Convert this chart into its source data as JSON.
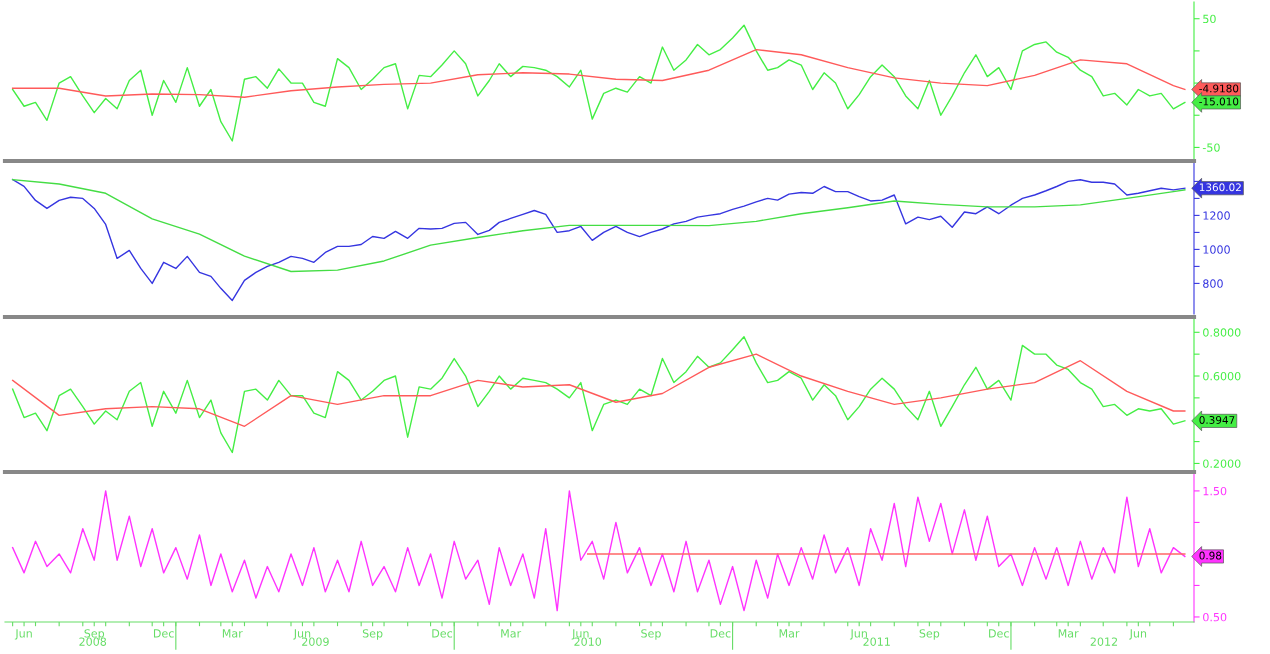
{
  "chart_data": [
    {
      "type": "line",
      "tick_labels": "y",
      "xlim": [
        "2008-05-22",
        "2012-08-28"
      ],
      "ylim": [
        -59,
        63
      ],
      "yticks": [
        -50,
        {
          "value": -25,
          "label": null
        },
        {
          "value": 0,
          "label": null
        },
        {
          "value": 25,
          "label": null
        },
        50
      ],
      "x": [
        "2008-06-01",
        "2008-06-16",
        "2008-07-01",
        "2008-07-16",
        "2008-08-01",
        "2008-08-16",
        "2008-09-01",
        "2008-09-16",
        "2008-10-01",
        "2008-10-16",
        "2008-11-01",
        "2008-11-16",
        "2008-12-01",
        "2008-12-16",
        "2009-01-01",
        "2009-01-16",
        "2009-02-01",
        "2009-02-16",
        "2009-03-01",
        "2009-03-16",
        "2009-04-01",
        "2009-04-16",
        "2009-05-01",
        "2009-05-16",
        "2009-06-01",
        "2009-06-16",
        "2009-07-01",
        "2009-07-16",
        "2009-08-01",
        "2009-08-16",
        "2009-09-01",
        "2009-09-16",
        "2009-10-01",
        "2009-10-16",
        "2009-11-01",
        "2009-11-16",
        "2009-12-01",
        "2009-12-16",
        "2010-01-01",
        "2010-01-16",
        "2010-02-01",
        "2010-02-16",
        "2010-03-01",
        "2010-03-16",
        "2010-04-01",
        "2010-04-16",
        "2010-05-01",
        "2010-05-16",
        "2010-06-01",
        "2010-06-16",
        "2010-07-01",
        "2010-07-16",
        "2010-08-01",
        "2010-08-16",
        "2010-09-01",
        "2010-09-16",
        "2010-10-01",
        "2010-10-16",
        "2010-11-01",
        "2010-11-16",
        "2010-12-01",
        "2010-12-16",
        "2011-01-01",
        "2011-01-16",
        "2011-02-01",
        "2011-02-16",
        "2011-03-01",
        "2011-03-16",
        "2011-04-01",
        "2011-04-16",
        "2011-05-01",
        "2011-05-16",
        "2011-06-01",
        "2011-06-16",
        "2011-07-01",
        "2011-07-16",
        "2011-08-01",
        "2011-08-16",
        "2011-09-01",
        "2011-09-16",
        "2011-10-01",
        "2011-10-16",
        "2011-11-01",
        "2011-11-16",
        "2011-12-01",
        "2011-12-16",
        "2012-01-01",
        "2012-01-16",
        "2012-02-01",
        "2012-02-16",
        "2012-03-01",
        "2012-03-16",
        "2012-04-01",
        "2012-04-16",
        "2012-05-01",
        "2012-05-16",
        "2012-06-01",
        "2012-06-16",
        "2012-07-01",
        "2012-07-16",
        "2012-08-01",
        "2012-08-16"
      ],
      "series": [
        {
          "color": "#44ee44",
          "values": [
            -5,
            -18,
            -15,
            -29,
            0,
            5,
            -10,
            -23,
            -12,
            -20,
            2,
            10,
            -25,
            2,
            -15,
            12,
            -18,
            -5,
            -30,
            -45,
            3,
            5,
            -4,
            11,
            0,
            0,
            -15,
            -18,
            19,
            12,
            -5,
            3,
            12,
            15,
            -20,
            6,
            5,
            14,
            25,
            15,
            -10,
            2,
            15,
            5,
            13,
            12,
            10,
            5,
            -3,
            10,
            -28,
            -8,
            -4,
            -7,
            5,
            0,
            28,
            10,
            18,
            30,
            22,
            26,
            35,
            45,
            25,
            10,
            12,
            18,
            14,
            -5,
            8,
            0,
            -20,
            -9,
            5,
            14,
            5,
            -10,
            -20,
            2,
            -25,
            -10,
            8,
            22,
            5,
            12,
            -5,
            25,
            30,
            32,
            24,
            20,
            10,
            5,
            -10,
            -8,
            -17,
            -5,
            -10,
            -8,
            -20,
            -15.01
          ]
        },
        {
          "color": "#ff5a5a",
          "x": [
            "2008-06-01",
            "2008-08-01",
            "2008-10-01",
            "2008-12-01",
            "2009-02-01",
            "2009-04-01",
            "2009-06-01",
            "2009-08-01",
            "2009-10-01",
            "2009-12-01",
            "2010-02-01",
            "2010-04-01",
            "2010-06-01",
            "2010-08-01",
            "2010-10-01",
            "2010-12-01",
            "2011-02-01",
            "2011-04-01",
            "2011-06-01",
            "2011-08-01",
            "2011-10-01",
            "2011-12-01",
            "2012-02-01",
            "2012-04-01",
            "2012-06-01",
            "2012-08-01",
            "2012-08-16"
          ],
          "values": [
            -4,
            -4,
            -10,
            -8.5,
            -9,
            -11,
            -6,
            -3,
            -1,
            0,
            6.5,
            8,
            7,
            3,
            2,
            10,
            26,
            22,
            12,
            4,
            0,
            -2,
            6,
            18,
            15,
            -2,
            -4.918
          ]
        }
      ],
      "annotations": [
        {
          "text": "-4.9180",
          "x": "2012-08-16",
          "y": -4.918
        },
        {
          "text": "-15.010",
          "x": "2012-08-16",
          "y": -15.01
        }
      ]
    },
    {
      "type": "line",
      "tick_labels": "y",
      "xlim": [
        "2008-05-22",
        "2012-08-28"
      ],
      "ylim": [
        620,
        1520
      ],
      "yticks": [
        800,
        {
          "value": 900,
          "label": null
        },
        1000,
        {
          "value": 1100,
          "label": null
        },
        1200,
        {
          "value": 1300,
          "label": null
        },
        {
          "value": 1400,
          "label": null
        }
      ],
      "x": [
        "2008-06-01",
        "2008-06-16",
        "2008-07-01",
        "2008-07-16",
        "2008-08-01",
        "2008-08-16",
        "2008-09-01",
        "2008-09-16",
        "2008-10-01",
        "2008-10-16",
        "2008-11-01",
        "2008-11-16",
        "2008-12-01",
        "2008-12-16",
        "2009-01-01",
        "2009-01-16",
        "2009-02-01",
        "2009-02-16",
        "2009-03-01",
        "2009-03-16",
        "2009-04-01",
        "2009-04-16",
        "2009-05-01",
        "2009-05-16",
        "2009-06-01",
        "2009-06-16",
        "2009-07-01",
        "2009-07-16",
        "2009-08-01",
        "2009-08-16",
        "2009-09-01",
        "2009-09-16",
        "2009-10-01",
        "2009-10-16",
        "2009-11-01",
        "2009-11-16",
        "2009-12-01",
        "2009-12-16",
        "2010-01-01",
        "2010-01-16",
        "2010-02-01",
        "2010-02-16",
        "2010-03-01",
        "2010-03-16",
        "2010-04-01",
        "2010-04-16",
        "2010-05-01",
        "2010-05-16",
        "2010-06-01",
        "2010-06-16",
        "2010-07-01",
        "2010-07-16",
        "2010-08-01",
        "2010-08-16",
        "2010-09-01",
        "2010-09-16",
        "2010-10-01",
        "2010-10-16",
        "2010-11-01",
        "2010-11-16",
        "2010-12-01",
        "2010-12-16",
        "2011-01-01",
        "2011-01-16",
        "2011-02-01",
        "2011-02-16",
        "2011-03-01",
        "2011-03-16",
        "2011-04-01",
        "2011-04-16",
        "2011-05-01",
        "2011-05-16",
        "2011-06-01",
        "2011-06-16",
        "2011-07-01",
        "2011-07-16",
        "2011-08-01",
        "2011-08-16",
        "2011-09-01",
        "2011-09-16",
        "2011-10-01",
        "2011-10-16",
        "2011-11-01",
        "2011-11-16",
        "2011-12-01",
        "2011-12-16",
        "2012-01-01",
        "2012-01-16",
        "2012-02-01",
        "2012-02-16",
        "2012-03-01",
        "2012-03-16",
        "2012-04-01",
        "2012-04-16",
        "2012-05-01",
        "2012-05-16",
        "2012-06-01",
        "2012-06-16",
        "2012-07-01",
        "2012-07-16",
        "2012-08-01",
        "2012-08-16"
      ],
      "series": [
        {
          "color": "#3535e0",
          "values": [
            1411,
            1371,
            1288,
            1241,
            1288,
            1307,
            1300,
            1241,
            1147,
            947,
            994,
            888,
            800,
            924,
            888,
            959,
            865,
            841,
            771,
            700,
            818,
            865,
            900,
            924,
            959,
            947,
            924,
            982,
            1018,
            1018,
            1029,
            1076,
            1065,
            1106,
            1065,
            1124,
            1120,
            1124,
            1153,
            1159,
            1088,
            1112,
            1159,
            1182,
            1206,
            1229,
            1206,
            1100,
            1110,
            1135,
            1053,
            1100,
            1135,
            1100,
            1075,
            1100,
            1120,
            1150,
            1165,
            1190,
            1200,
            1210,
            1235,
            1255,
            1280,
            1300,
            1290,
            1325,
            1335,
            1330,
            1370,
            1340,
            1340,
            1310,
            1285,
            1290,
            1320,
            1150,
            1190,
            1175,
            1195,
            1130,
            1220,
            1210,
            1250,
            1210,
            1260,
            1300,
            1320,
            1345,
            1370,
            1400,
            1410,
            1395,
            1395,
            1385,
            1320,
            1330,
            1345,
            1360,
            1350,
            1360.02
          ]
        },
        {
          "color": "#44dd44",
          "x": [
            "2008-06-01",
            "2008-08-01",
            "2008-10-01",
            "2008-12-01",
            "2009-02-01",
            "2009-04-01",
            "2009-06-01",
            "2009-08-01",
            "2009-10-01",
            "2009-12-01",
            "2010-02-01",
            "2010-04-01",
            "2010-06-01",
            "2010-08-01",
            "2010-10-01",
            "2010-12-01",
            "2011-02-01",
            "2011-04-01",
            "2011-06-01",
            "2011-08-01",
            "2011-10-01",
            "2011-12-01",
            "2012-02-01",
            "2012-04-01",
            "2012-06-01",
            "2012-08-01",
            "2012-08-16"
          ],
          "values": [
            1410,
            1385,
            1330,
            1180,
            1090,
            960,
            870,
            878,
            932,
            1025,
            1070,
            1110,
            1141,
            1141,
            1141,
            1140,
            1165,
            1210,
            1245,
            1285,
            1265,
            1250,
            1250,
            1262,
            1300,
            1340,
            1350
          ]
        }
      ],
      "annotations": [
        {
          "text": "1360.02",
          "x": "2012-08-16",
          "y": 1360.02
        }
      ]
    },
    {
      "type": "line",
      "tick_labels": "y",
      "xlim": [
        "2008-05-22",
        "2012-08-28"
      ],
      "ylim": [
        0.17,
        0.87
      ],
      "yticks": [
        {
          "value": 0.2,
          "label": "0.2000"
        },
        {
          "value": 0.3,
          "label": null
        },
        {
          "value": 0.4,
          "label": null
        },
        {
          "value": 0.5,
          "label": null
        },
        {
          "value": 0.6,
          "label": "0.6000"
        },
        {
          "value": 0.7,
          "label": null
        },
        {
          "value": 0.8,
          "label": "0.8000"
        }
      ],
      "x": [
        "2008-06-01",
        "2008-06-16",
        "2008-07-01",
        "2008-07-16",
        "2008-08-01",
        "2008-08-16",
        "2008-09-01",
        "2008-09-16",
        "2008-10-01",
        "2008-10-16",
        "2008-11-01",
        "2008-11-16",
        "2008-12-01",
        "2008-12-16",
        "2009-01-01",
        "2009-01-16",
        "2009-02-01",
        "2009-02-16",
        "2009-03-01",
        "2009-03-16",
        "2009-04-01",
        "2009-04-16",
        "2009-05-01",
        "2009-05-16",
        "2009-06-01",
        "2009-06-16",
        "2009-07-01",
        "2009-07-16",
        "2009-08-01",
        "2009-08-16",
        "2009-09-01",
        "2009-09-16",
        "2009-10-01",
        "2009-10-16",
        "2009-11-01",
        "2009-11-16",
        "2009-12-01",
        "2009-12-16",
        "2010-01-01",
        "2010-01-16",
        "2010-02-01",
        "2010-02-16",
        "2010-03-01",
        "2010-03-16",
        "2010-04-01",
        "2010-04-16",
        "2010-05-01",
        "2010-05-16",
        "2010-06-01",
        "2010-06-16",
        "2010-07-01",
        "2010-07-16",
        "2010-08-01",
        "2010-08-16",
        "2010-09-01",
        "2010-09-16",
        "2010-10-01",
        "2010-10-16",
        "2010-11-01",
        "2010-11-16",
        "2010-12-01",
        "2010-12-16",
        "2011-01-01",
        "2011-01-16",
        "2011-02-01",
        "2011-02-16",
        "2011-03-01",
        "2011-03-16",
        "2011-04-01",
        "2011-04-16",
        "2011-05-01",
        "2011-05-16",
        "2011-06-01",
        "2011-06-16",
        "2011-07-01",
        "2011-07-16",
        "2011-08-01",
        "2011-08-16",
        "2011-09-01",
        "2011-09-16",
        "2011-10-01",
        "2011-10-16",
        "2011-11-01",
        "2011-11-16",
        "2011-12-01",
        "2011-12-16",
        "2012-01-01",
        "2012-01-16",
        "2012-02-01",
        "2012-02-16",
        "2012-03-01",
        "2012-03-16",
        "2012-04-01",
        "2012-04-16",
        "2012-05-01",
        "2012-05-16",
        "2012-06-01",
        "2012-06-16",
        "2012-07-01",
        "2012-07-16",
        "2012-08-01",
        "2012-08-16"
      ],
      "series": [
        {
          "color": "#44ee44",
          "values": [
            0.54,
            0.41,
            0.43,
            0.35,
            0.51,
            0.54,
            0.46,
            0.38,
            0.44,
            0.4,
            0.53,
            0.57,
            0.37,
            0.53,
            0.43,
            0.58,
            0.41,
            0.49,
            0.34,
            0.25,
            0.53,
            0.54,
            0.49,
            0.58,
            0.51,
            0.51,
            0.43,
            0.41,
            0.62,
            0.58,
            0.49,
            0.53,
            0.58,
            0.6,
            0.32,
            0.55,
            0.54,
            0.59,
            0.68,
            0.6,
            0.46,
            0.53,
            0.6,
            0.54,
            0.59,
            0.58,
            0.57,
            0.54,
            0.5,
            0.57,
            0.35,
            0.47,
            0.49,
            0.47,
            0.54,
            0.51,
            0.68,
            0.57,
            0.62,
            0.69,
            0.64,
            0.66,
            0.72,
            0.78,
            0.66,
            0.57,
            0.58,
            0.62,
            0.59,
            0.49,
            0.56,
            0.51,
            0.4,
            0.46,
            0.54,
            0.59,
            0.54,
            0.46,
            0.4,
            0.53,
            0.37,
            0.46,
            0.56,
            0.64,
            0.54,
            0.58,
            0.49,
            0.74,
            0.7,
            0.7,
            0.65,
            0.63,
            0.57,
            0.54,
            0.46,
            0.47,
            0.42,
            0.45,
            0.44,
            0.45,
            0.38,
            0.3947
          ]
        },
        {
          "color": "#ff5a5a",
          "x": [
            "2008-06-01",
            "2008-08-01",
            "2008-10-01",
            "2008-12-01",
            "2009-02-01",
            "2009-04-01",
            "2009-06-01",
            "2009-08-01",
            "2009-10-01",
            "2009-12-01",
            "2010-02-01",
            "2010-04-01",
            "2010-06-01",
            "2010-08-01",
            "2010-10-01",
            "2010-12-01",
            "2011-02-01",
            "2011-04-01",
            "2011-06-01",
            "2011-08-01",
            "2011-10-01",
            "2011-12-01",
            "2012-02-01",
            "2012-04-01",
            "2012-06-01",
            "2012-08-01",
            "2012-08-16"
          ],
          "values": [
            0.58,
            0.42,
            0.45,
            0.46,
            0.45,
            0.37,
            0.51,
            0.47,
            0.51,
            0.51,
            0.58,
            0.55,
            0.56,
            0.48,
            0.52,
            0.64,
            0.7,
            0.6,
            0.53,
            0.47,
            0.5,
            0.54,
            0.57,
            0.67,
            0.53,
            0.44,
            0.44
          ]
        }
      ],
      "annotations": [
        {
          "text": "0.3947",
          "x": "2012-08-16",
          "y": 0.3947
        }
      ]
    },
    {
      "type": "line",
      "xlim": [
        "2008-05-22",
        "2012-08-28"
      ],
      "ylim": [
        0.46,
        1.65
      ],
      "yticks": [
        {
          "value": 0.5,
          "label": "0.50"
        },
        {
          "value": 0.75,
          "label": null
        },
        {
          "value": 1.0,
          "label": null
        },
        {
          "value": 1.25,
          "label": null
        },
        {
          "value": 1.5,
          "label": "1.50"
        }
      ],
      "xticks": [
        {
          "value": "2008-06-01",
          "label": null
        },
        {
          "value": "2008-07-01",
          "label": null
        },
        {
          "value": "2008-08-01",
          "label": null
        },
        {
          "value": "2008-09-01",
          "label": null
        },
        {
          "value": "2008-10-01",
          "label": null
        },
        {
          "value": "2008-11-01",
          "label": null
        },
        {
          "value": "2008-12-01",
          "label": null
        },
        {
          "value": "2009-01-01",
          "label": null
        },
        {
          "value": "2009-02-01",
          "label": null
        },
        {
          "value": "2009-03-01",
          "label": null
        },
        {
          "value": "2009-04-01",
          "label": null
        },
        {
          "value": "2009-05-01",
          "label": null
        },
        {
          "value": "2009-06-01",
          "label": null
        },
        {
          "value": "2009-07-01",
          "label": null
        },
        {
          "value": "2009-08-01",
          "label": null
        },
        {
          "value": "2009-09-01",
          "label": null
        },
        {
          "value": "2009-10-01",
          "label": null
        },
        {
          "value": "2009-11-01",
          "label": null
        },
        {
          "value": "2009-12-01",
          "label": null
        },
        {
          "value": "2010-01-01",
          "label": null
        },
        {
          "value": "2010-02-01",
          "label": null
        },
        {
          "value": "2010-03-01",
          "label": null
        },
        {
          "value": "2010-04-01",
          "label": null
        },
        {
          "value": "2010-05-01",
          "label": null
        },
        {
          "value": "2010-06-01",
          "label": null
        },
        {
          "value": "2010-07-01",
          "label": null
        },
        {
          "value": "2010-08-01",
          "label": null
        },
        {
          "value": "2010-09-01",
          "label": null
        },
        {
          "value": "2010-10-01",
          "label": null
        },
        {
          "value": "2010-11-01",
          "label": null
        },
        {
          "value": "2010-12-01",
          "label": null
        },
        {
          "value": "2011-01-01",
          "label": null
        },
        {
          "value": "2011-02-01",
          "label": null
        },
        {
          "value": "2011-03-01",
          "label": null
        },
        {
          "value": "2011-04-01",
          "label": null
        },
        {
          "value": "2011-05-01",
          "label": null
        },
        {
          "value": "2011-06-01",
          "label": null
        },
        {
          "value": "2011-07-01",
          "label": null
        },
        {
          "value": "2011-08-01",
          "label": null
        },
        {
          "value": "2011-09-01",
          "label": null
        },
        {
          "value": "2011-10-01",
          "label": null
        },
        {
          "value": "2011-11-01",
          "label": null
        },
        {
          "value": "2011-12-01",
          "label": null
        },
        {
          "value": "2012-01-01",
          "label": null
        },
        {
          "value": "2012-02-01",
          "label": null
        },
        {
          "value": "2012-03-01",
          "label": null
        },
        {
          "value": "2012-04-01",
          "label": null
        },
        {
          "value": "2012-05-01",
          "label": null
        },
        {
          "value": "2012-06-01",
          "label": null
        },
        {
          "value": "2012-07-01",
          "label": null
        },
        {
          "value": "2012-08-01",
          "label": null
        },
        {
          "value": "2008-06-16",
          "label": "Jun"
        },
        {
          "value": "2008-09-16",
          "label": "Sep"
        },
        {
          "value": "2008-12-16",
          "label": "Dec"
        },
        {
          "value": "2009-03-16",
          "label": "Mar"
        },
        {
          "value": "2009-06-16",
          "label": "Jun"
        },
        {
          "value": "2009-09-16",
          "label": "Sep"
        },
        {
          "value": "2009-12-16",
          "label": "Dec"
        },
        {
          "value": "2010-03-16",
          "label": "Mar"
        },
        {
          "value": "2010-06-16",
          "label": "Jun"
        },
        {
          "value": "2010-09-16",
          "label": "Sep"
        },
        {
          "value": "2010-12-16",
          "label": "Dec"
        },
        {
          "value": "2011-03-16",
          "label": "Mar"
        },
        {
          "value": "2011-06-16",
          "label": "Jun"
        },
        {
          "value": "2011-09-16",
          "label": "Sep"
        },
        {
          "value": "2011-12-16",
          "label": "Dec"
        },
        {
          "value": "2012-03-16",
          "label": "Mar"
        },
        {
          "value": "2012-06-16",
          "label": "Jun"
        }
      ],
      "x2lim": [
        "2008-05-22",
        "2012-08-28"
      ],
      "x2ticks": [
        {
          "value": "2008-09-14",
          "label": "2008"
        },
        {
          "value": "2009-01-01",
          "label": null
        },
        {
          "value": "2009-07-03",
          "label": "2009"
        },
        {
          "value": "2010-01-01",
          "label": null
        },
        {
          "value": "2010-06-25",
          "label": "2010"
        },
        {
          "value": "2011-01-01",
          "label": null
        },
        {
          "value": "2011-07-09",
          "label": "2011"
        },
        {
          "value": "2012-01-01",
          "label": null
        },
        {
          "value": "2012-05-02",
          "label": "2012"
        }
      ],
      "x": [
        "2008-06-01",
        "2008-06-16",
        "2008-07-01",
        "2008-07-16",
        "2008-08-01",
        "2008-08-16",
        "2008-09-01",
        "2008-09-16",
        "2008-10-01",
        "2008-10-16",
        "2008-11-01",
        "2008-11-16",
        "2008-12-01",
        "2008-12-16",
        "2009-01-01",
        "2009-01-16",
        "2009-02-01",
        "2009-02-16",
        "2009-03-01",
        "2009-03-16",
        "2009-04-01",
        "2009-04-16",
        "2009-05-01",
        "2009-05-16",
        "2009-06-01",
        "2009-06-16",
        "2009-07-01",
        "2009-07-16",
        "2009-08-01",
        "2009-08-16",
        "2009-09-01",
        "2009-09-16",
        "2009-10-01",
        "2009-10-16",
        "2009-11-01",
        "2009-11-16",
        "2009-12-01",
        "2009-12-16",
        "2010-01-01",
        "2010-01-16",
        "2010-02-01",
        "2010-02-16",
        "2010-03-01",
        "2010-03-16",
        "2010-04-01",
        "2010-04-16",
        "2010-05-01",
        "2010-05-16",
        "2010-06-01",
        "2010-06-16",
        "2010-07-01",
        "2010-07-16",
        "2010-08-01",
        "2010-08-16",
        "2010-09-01",
        "2010-09-16",
        "2010-10-01",
        "2010-10-16",
        "2010-11-01",
        "2010-11-16",
        "2010-12-01",
        "2010-12-16",
        "2011-01-01",
        "2011-01-16",
        "2011-02-01",
        "2011-02-16",
        "2011-03-01",
        "2011-03-16",
        "2011-04-01",
        "2011-04-16",
        "2011-05-01",
        "2011-05-16",
        "2011-06-01",
        "2011-06-16",
        "2011-07-01",
        "2011-07-16",
        "2011-08-01",
        "2011-08-16",
        "2011-09-01",
        "2011-09-16",
        "2011-10-01",
        "2011-10-16",
        "2011-11-01",
        "2011-11-16",
        "2011-12-01",
        "2011-12-16",
        "2012-01-01",
        "2012-01-16",
        "2012-02-01",
        "2012-02-16",
        "2012-03-01",
        "2012-03-16",
        "2012-04-01",
        "2012-04-16",
        "2012-05-01",
        "2012-05-16",
        "2012-06-01",
        "2012-06-16",
        "2012-07-01",
        "2012-07-16",
        "2012-08-01",
        "2012-08-16"
      ],
      "series": [
        {
          "color": "#ff33ff",
          "values": [
            1.05,
            0.85,
            1.1,
            0.9,
            1.0,
            0.85,
            1.2,
            0.95,
            1.5,
            0.95,
            1.3,
            0.9,
            1.2,
            0.85,
            1.05,
            0.8,
            1.15,
            0.75,
            1.0,
            0.7,
            0.95,
            0.65,
            0.9,
            0.7,
            1.0,
            0.75,
            1.05,
            0.7,
            0.95,
            0.7,
            1.1,
            0.75,
            0.9,
            0.7,
            1.05,
            0.75,
            1.0,
            0.65,
            1.1,
            0.8,
            0.95,
            0.6,
            1.05,
            0.75,
            1.0,
            0.65,
            1.2,
            0.55,
            1.5,
            0.95,
            1.1,
            0.8,
            1.25,
            0.85,
            1.05,
            0.75,
            1.0,
            0.7,
            1.1,
            0.7,
            0.95,
            0.6,
            0.9,
            0.55,
            0.95,
            0.65,
            1.0,
            0.75,
            1.05,
            0.8,
            1.15,
            0.85,
            1.05,
            0.75,
            1.2,
            0.95,
            1.4,
            0.9,
            1.45,
            1.1,
            1.4,
            1.0,
            1.35,
            0.95,
            1.3,
            0.9,
            1.0,
            0.75,
            1.05,
            0.8,
            1.05,
            0.75,
            1.1,
            0.8,
            1.05,
            0.85,
            1.45,
            0.9,
            1.2,
            0.85,
            1.05,
            0.98
          ]
        },
        {
          "color": "#ff6666",
          "x": [
            "2010-06-25",
            "2012-08-16"
          ],
          "values": [
            1.0,
            1.0
          ]
        }
      ],
      "annotations": [
        {
          "text": "0.98",
          "x": "2012-08-16",
          "y": 0.98
        }
      ]
    }
  ]
}
